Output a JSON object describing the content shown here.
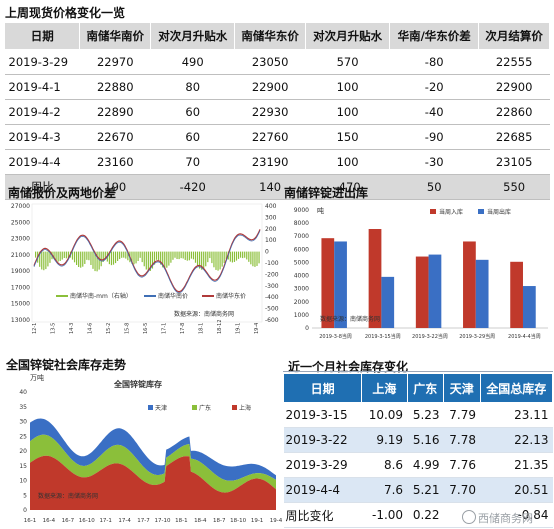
{
  "section1": {
    "title": "上周现货价格变化一览",
    "headers": [
      "日期",
      "南储华南价",
      "对次月升贴水",
      "南储华东价",
      "对次月升贴水",
      "华南/华东价差",
      "次月结算价"
    ],
    "rows": [
      [
        "2019-3-29",
        "22970",
        "490",
        "23050",
        "570",
        "-80",
        "22555"
      ],
      [
        "2019-4-1",
        "22880",
        "80",
        "22900",
        "100",
        "-20",
        "22900"
      ],
      [
        "2019-4-2",
        "22890",
        "60",
        "22930",
        "100",
        "-40",
        "22860"
      ],
      [
        "2019-4-3",
        "22670",
        "60",
        "22760",
        "150",
        "-90",
        "22685"
      ],
      [
        "2019-4-4",
        "23160",
        "70",
        "23190",
        "100",
        "-30",
        "23105"
      ]
    ],
    "weekly": [
      "周比",
      "190",
      "-420",
      "140",
      "-470",
      "50",
      "550"
    ]
  },
  "chart_left": {
    "title": "南储报价及两地价差",
    "source": "数据来源：南储商务网",
    "legend": [
      "南储华南-mm（右轴）",
      "南储华南价",
      "南储华东价"
    ],
    "y_left_ticks": [
      "27000",
      "25000",
      "23000",
      "21000",
      "19000",
      "17000",
      "15000",
      "13000"
    ],
    "y_right_ticks": [
      "400",
      "300",
      "200",
      "100",
      "0",
      "-100",
      "-200",
      "-300",
      "-400",
      "-500",
      "-600"
    ],
    "x_ticks": [
      "12-1",
      "13-5",
      "14-3",
      "14-6",
      "15-2",
      "15-8",
      "16-5",
      "17-1",
      "17-8",
      "18-1",
      "18-12",
      "19-1",
      "19-4"
    ]
  },
  "chart_mid": {
    "title": "南储锌锭进出库",
    "unit": "吨",
    "source": "数据来源：南储商务网",
    "legend": [
      "当周入库",
      "当周出库"
    ],
    "y_ticks": [
      "9000",
      "8000",
      "7000",
      "6000",
      "5000",
      "4000",
      "3000",
      "2000",
      "1000",
      "0"
    ],
    "colors": {
      "in": "#c0392b",
      "out": "#3a6fc4"
    }
  },
  "chart_data": {
    "type": "bar",
    "categories": [
      "2019-3-8当周",
      "2019-3-15当周",
      "2019-3-22当周",
      "2019-3-29当周",
      "2019-4-4当周"
    ],
    "ylim": [
      0,
      9000
    ],
    "series": [
      {
        "name": "当周入库",
        "values": [
          6850,
          7550,
          5450,
          6600,
          5050
        ]
      },
      {
        "name": "当周出库",
        "values": [
          6600,
          3900,
          5600,
          5200,
          3200
        ]
      }
    ]
  },
  "chart_bottom_left": {
    "title": "全国锌锭社会库存走势",
    "unit": "万吨",
    "inner_title": "全国锌锭库存",
    "source": "数据来源：南储商务网",
    "legend": [
      "天津",
      "广东",
      "上海"
    ],
    "y_ticks": [
      "40",
      "35",
      "30",
      "25",
      "20",
      "15",
      "10",
      "5",
      "0"
    ],
    "x_ticks": [
      "16-1",
      "16-4",
      "16-7",
      "16-10",
      "17-1",
      "17-4",
      "17-7",
      "17-10",
      "18-1",
      "18-4",
      "18-7",
      "18-10",
      "19-1",
      "19-4"
    ]
  },
  "stock_table": {
    "title": "近一个月社会库存变化",
    "headers": [
      "日期",
      "上海",
      "广东",
      "天津",
      "全国总库存"
    ],
    "rows": [
      [
        "2019-3-15",
        "10.09",
        "5.23",
        "7.79",
        "23.11"
      ],
      [
        "2019-3-22",
        "9.19",
        "5.16",
        "7.78",
        "22.13"
      ],
      [
        "2019-3-29",
        "8.6",
        "4.99",
        "7.76",
        "21.35"
      ],
      [
        "2019-4-4",
        "7.6",
        "5.21",
        "7.70",
        "20.51"
      ]
    ],
    "weekly": [
      "周比变化",
      "-1.00",
      "0.22",
      "",
      "-0.84"
    ]
  },
  "watermark": "西储商务网"
}
